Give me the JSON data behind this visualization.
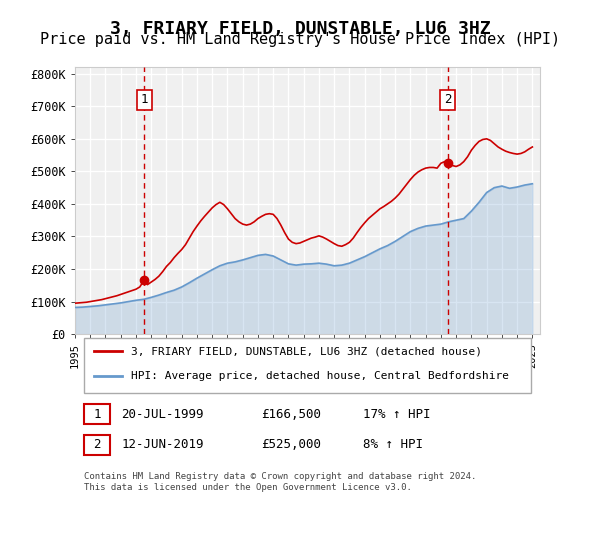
{
  "title": "3, FRIARY FIELD, DUNSTABLE, LU6 3HZ",
  "subtitle": "Price paid vs. HM Land Registry's House Price Index (HPI)",
  "title_fontsize": 13,
  "subtitle_fontsize": 11,
  "ylabel_ticks": [
    "£0",
    "£100K",
    "£200K",
    "£300K",
    "£400K",
    "£500K",
    "£600K",
    "£700K",
    "£800K"
  ],
  "ytick_values": [
    0,
    100000,
    200000,
    300000,
    400000,
    500000,
    600000,
    700000,
    800000
  ],
  "ylim": [
    0,
    820000
  ],
  "xlim_start": 1995.0,
  "xlim_end": 2025.5,
  "background_color": "#ffffff",
  "plot_bg_color": "#f0f0f0",
  "grid_color": "#ffffff",
  "sale1_date": "20-JUL-1999",
  "sale1_price": 166500,
  "sale1_label": "1",
  "sale1_x": 1999.54,
  "sale2_date": "12-JUN-2019",
  "sale2_price": 525000,
  "sale2_label": "2",
  "sale2_x": 2019.44,
  "legend_line1": "3, FRIARY FIELD, DUNSTABLE, LU6 3HZ (detached house)",
  "legend_line2": "HPI: Average price, detached house, Central Bedfordshire",
  "table_row1": [
    "1",
    "20-JUL-1999",
    "£166,500",
    "17% ↑ HPI"
  ],
  "table_row2": [
    "2",
    "12-JUN-2019",
    "£525,000",
    "8% ↑ HPI"
  ],
  "footer": "Contains HM Land Registry data © Crown copyright and database right 2024.\nThis data is licensed under the Open Government Licence v3.0.",
  "line_color_red": "#cc0000",
  "line_color_blue": "#6699cc",
  "marker_color_red": "#cc0000",
  "vline_color": "#cc0000",
  "hpi_years": [
    1995,
    1995.5,
    1996,
    1996.5,
    1997,
    1997.5,
    1998,
    1998.5,
    1999,
    1999.5,
    2000,
    2000.5,
    2001,
    2001.5,
    2002,
    2002.5,
    2003,
    2003.5,
    2004,
    2004.5,
    2005,
    2005.5,
    2006,
    2006.5,
    2007,
    2007.5,
    2008,
    2008.5,
    2009,
    2009.5,
    2010,
    2010.5,
    2011,
    2011.5,
    2012,
    2012.5,
    2013,
    2013.5,
    2014,
    2014.5,
    2015,
    2015.5,
    2016,
    2016.5,
    2017,
    2017.5,
    2018,
    2018.5,
    2019,
    2019.5,
    2020,
    2020.5,
    2021,
    2021.5,
    2022,
    2022.5,
    2023,
    2023.5,
    2024,
    2024.5,
    2025
  ],
  "hpi_values": [
    82000,
    83000,
    85000,
    87000,
    90000,
    93000,
    96000,
    100000,
    104000,
    107000,
    113000,
    120000,
    128000,
    135000,
    145000,
    158000,
    172000,
    185000,
    198000,
    210000,
    218000,
    222000,
    228000,
    235000,
    242000,
    245000,
    240000,
    228000,
    216000,
    212000,
    215000,
    216000,
    218000,
    215000,
    210000,
    212000,
    218000,
    228000,
    238000,
    250000,
    262000,
    272000,
    285000,
    300000,
    315000,
    325000,
    332000,
    335000,
    338000,
    345000,
    350000,
    355000,
    378000,
    405000,
    435000,
    450000,
    455000,
    448000,
    452000,
    458000,
    462000
  ],
  "price_years": [
    1995,
    1995.25,
    1995.5,
    1995.75,
    1996,
    1996.25,
    1996.5,
    1996.75,
    1997,
    1997.25,
    1997.5,
    1997.75,
    1998,
    1998.25,
    1998.5,
    1998.75,
    1999,
    1999.25,
    1999.54,
    1999.75,
    2000,
    2000.25,
    2000.5,
    2000.75,
    2001,
    2001.25,
    2001.5,
    2001.75,
    2002,
    2002.25,
    2002.5,
    2002.75,
    2003,
    2003.25,
    2003.5,
    2003.75,
    2004,
    2004.25,
    2004.5,
    2004.75,
    2005,
    2005.25,
    2005.5,
    2005.75,
    2006,
    2006.25,
    2006.5,
    2006.75,
    2007,
    2007.25,
    2007.5,
    2007.75,
    2008,
    2008.25,
    2008.5,
    2008.75,
    2009,
    2009.25,
    2009.5,
    2009.75,
    2010,
    2010.25,
    2010.5,
    2010.75,
    2011,
    2011.25,
    2011.5,
    2011.75,
    2012,
    2012.25,
    2012.5,
    2012.75,
    2013,
    2013.25,
    2013.5,
    2013.75,
    2014,
    2014.25,
    2014.5,
    2014.75,
    2015,
    2015.25,
    2015.5,
    2015.75,
    2016,
    2016.25,
    2016.5,
    2016.75,
    2017,
    2017.25,
    2017.5,
    2017.75,
    2018,
    2018.25,
    2018.5,
    2018.75,
    2019,
    2019.25,
    2019.44,
    2019.75,
    2020,
    2020.25,
    2020.5,
    2020.75,
    2021,
    2021.25,
    2021.5,
    2021.75,
    2022,
    2022.25,
    2022.5,
    2022.75,
    2023,
    2023.25,
    2023.5,
    2023.75,
    2024,
    2024.25,
    2024.5,
    2024.75,
    2025
  ],
  "price_values": [
    95000,
    96000,
    97000,
    98000,
    100000,
    102000,
    104000,
    106000,
    109000,
    112000,
    115000,
    118000,
    122000,
    126000,
    130000,
    134000,
    138000,
    145000,
    166500,
    152000,
    160000,
    168000,
    178000,
    192000,
    208000,
    220000,
    235000,
    248000,
    260000,
    275000,
    295000,
    315000,
    332000,
    348000,
    362000,
    375000,
    388000,
    398000,
    405000,
    398000,
    385000,
    370000,
    355000,
    345000,
    338000,
    335000,
    338000,
    345000,
    355000,
    362000,
    368000,
    370000,
    368000,
    355000,
    335000,
    312000,
    292000,
    282000,
    278000,
    280000,
    285000,
    290000,
    295000,
    298000,
    302000,
    298000,
    292000,
    285000,
    278000,
    272000,
    270000,
    275000,
    282000,
    295000,
    312000,
    328000,
    342000,
    355000,
    365000,
    375000,
    385000,
    392000,
    400000,
    408000,
    418000,
    430000,
    445000,
    460000,
    475000,
    488000,
    498000,
    505000,
    510000,
    512000,
    512000,
    510000,
    525000,
    530000,
    525000,
    518000,
    515000,
    520000,
    530000,
    545000,
    565000,
    580000,
    592000,
    598000,
    600000,
    595000,
    585000,
    575000,
    568000,
    562000,
    558000,
    555000,
    553000,
    555000,
    560000,
    568000,
    575000
  ],
  "xtick_years": [
    1995,
    1996,
    1997,
    1998,
    1999,
    2000,
    2001,
    2002,
    2003,
    2004,
    2005,
    2006,
    2007,
    2008,
    2009,
    2010,
    2011,
    2012,
    2013,
    2014,
    2015,
    2016,
    2017,
    2018,
    2019,
    2020,
    2021,
    2022,
    2023,
    2024,
    2025
  ]
}
